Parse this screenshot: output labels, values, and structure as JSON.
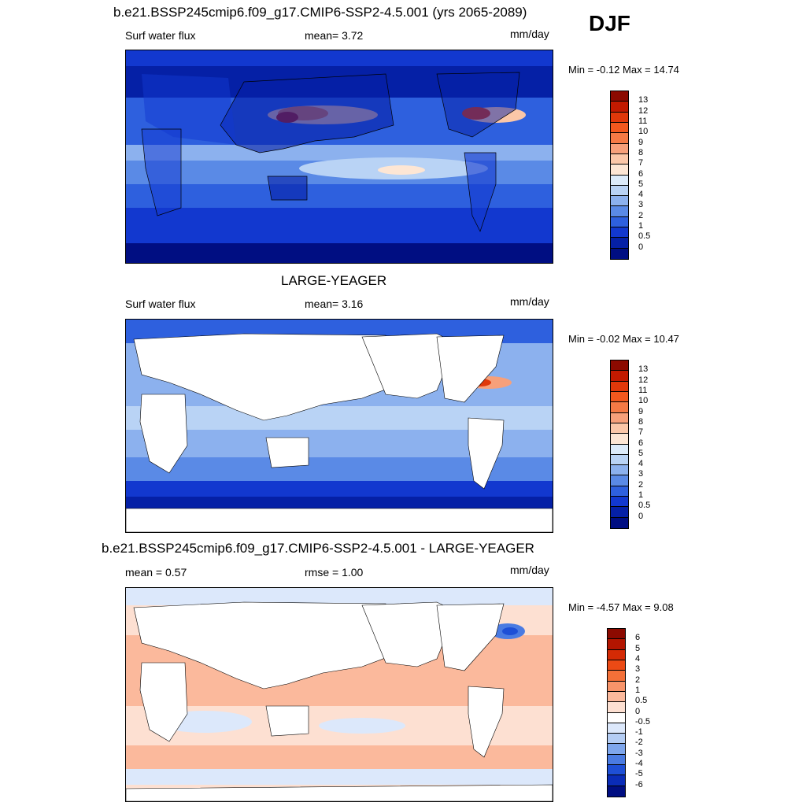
{
  "season": "DJF",
  "panels": [
    {
      "title": "b.e21.BSSP245cmip6.f09_g17.CMIP6-SSP2-4.5.001 (yrs 2065-2089)",
      "left_label": "Surf water flux",
      "mid_label": "mean=   3.72",
      "units": "mm/day",
      "minmax": "Min =  -0.12 Max =  14.74",
      "cbar_labels": [
        "13",
        "12",
        "11",
        "10",
        "9",
        "8",
        "7",
        "6",
        "5",
        "4",
        "3",
        "2",
        "1",
        "0.5",
        "0"
      ],
      "cbar_colors": [
        "#8c0a00",
        "#c21a00",
        "#e0380a",
        "#f2581e",
        "#f57a45",
        "#f7a07a",
        "#fbc7a8",
        "#fde6d4",
        "#dcebfa",
        "#b9d3f5",
        "#8cb1ee",
        "#5a8ae6",
        "#2e60de",
        "#1238cf",
        "#0520a6",
        "#000e82"
      ]
    },
    {
      "title": "LARGE-YEAGER",
      "left_label": "Surf water flux",
      "mid_label": "mean=   3.16",
      "units": "mm/day",
      "minmax": "Min =  -0.02 Max =  10.47",
      "cbar_labels": [
        "13",
        "12",
        "11",
        "10",
        "9",
        "8",
        "7",
        "6",
        "5",
        "4",
        "3",
        "2",
        "1",
        "0.5",
        "0"
      ],
      "cbar_colors": [
        "#8c0a00",
        "#c21a00",
        "#e0380a",
        "#f2581e",
        "#f57a45",
        "#f7a07a",
        "#fbc7a8",
        "#fde6d4",
        "#dcebfa",
        "#b9d3f5",
        "#8cb1ee",
        "#5a8ae6",
        "#2e60de",
        "#1238cf",
        "#0520a6",
        "#000e82"
      ]
    },
    {
      "title": "b.e21.BSSP245cmip6.f09_g17.CMIP6-SSP2-4.5.001 - LARGE-YEAGER",
      "left_label": "mean =   0.57",
      "mid_label": "rmse =   1.00",
      "units": "mm/day",
      "minmax": "Min =  -4.57 Max =   9.08",
      "cbar_labels": [
        "6",
        "5",
        "4",
        "3",
        "2",
        "1",
        "0.5",
        "0",
        "-0.5",
        "-1",
        "-2",
        "-3",
        "-4",
        "-5",
        "-6"
      ],
      "cbar_colors": [
        "#8c0a00",
        "#b31500",
        "#d42a05",
        "#ec4a15",
        "#f47038",
        "#f8946a",
        "#fbb99c",
        "#fde0d2",
        "#ffffff",
        "#dce8fb",
        "#b4cdf4",
        "#7ea6ec",
        "#4a7be2",
        "#1e4fd6",
        "#0a2cb8",
        "#000e82"
      ]
    }
  ]
}
